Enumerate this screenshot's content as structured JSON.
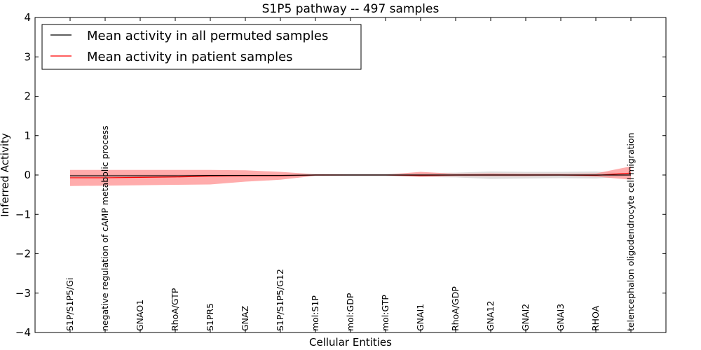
{
  "chart_data": {
    "type": "line",
    "title": "S1P5 pathway -- 497 samples",
    "xlabel": "Cellular Entities",
    "ylabel": "Inferred Activity",
    "ylim": [
      -4,
      4
    ],
    "yticks": [
      -4,
      -3,
      -2,
      -1,
      0,
      1,
      2,
      3,
      4
    ],
    "ytick_labels": [
      "−4",
      "−3",
      "−2",
      "−1",
      "0",
      "1",
      "2",
      "3",
      "4"
    ],
    "categories": [
      "S1P/S1P5/Gi",
      "negative regulation of cAMP metabolic process",
      "GNAO1",
      "RhoA/GTP",
      "S1PR5",
      "GNAZ",
      "S1P/S1P5/G12",
      "mol:S1P",
      "mol:GDP",
      "mol:GTP",
      "GNAI1",
      "RhoA/GDP",
      "GNA12",
      "GNAI2",
      "GNAI3",
      "RHOA",
      "telencephalon oligodendrocyte cell migration"
    ],
    "legend": {
      "position": "top-left"
    },
    "series": [
      {
        "name": "Mean activity in all permuted samples",
        "color": "#000000",
        "band_color": "#c8c8c8",
        "values": [
          -0.02,
          -0.02,
          -0.02,
          -0.02,
          -0.01,
          -0.01,
          -0.01,
          0.0,
          0.0,
          0.0,
          0.0,
          0.0,
          0.0,
          0.0,
          0.0,
          0.0,
          0.0
        ],
        "lower": [
          -0.04,
          -0.04,
          -0.04,
          -0.04,
          -0.03,
          -0.03,
          -0.03,
          -0.02,
          -0.03,
          -0.03,
          -0.05,
          -0.06,
          -0.1,
          -0.09,
          -0.08,
          -0.09,
          -0.03
        ],
        "upper": [
          0.02,
          0.02,
          0.02,
          0.02,
          0.02,
          0.02,
          0.02,
          0.02,
          0.03,
          0.03,
          0.05,
          0.06,
          0.09,
          0.08,
          0.08,
          0.09,
          0.03
        ]
      },
      {
        "name": "Mean activity in patient samples",
        "color": "#ff0000",
        "band_color": "#ff8080",
        "values": [
          -0.07,
          -0.07,
          -0.06,
          -0.05,
          -0.03,
          -0.02,
          -0.02,
          0.0,
          0.0,
          0.0,
          -0.01,
          0.0,
          0.0,
          0.0,
          0.0,
          -0.01,
          0.05
        ],
        "lower": [
          -0.28,
          -0.27,
          -0.26,
          -0.25,
          -0.24,
          -0.17,
          -0.12,
          -0.02,
          -0.01,
          -0.01,
          -0.05,
          -0.03,
          -0.03,
          -0.03,
          -0.02,
          -0.04,
          -0.12
        ],
        "upper": [
          0.13,
          0.13,
          0.13,
          0.13,
          0.13,
          0.12,
          0.08,
          0.02,
          0.01,
          0.01,
          0.08,
          0.03,
          0.04,
          0.03,
          0.03,
          0.04,
          0.22
        ]
      }
    ]
  }
}
